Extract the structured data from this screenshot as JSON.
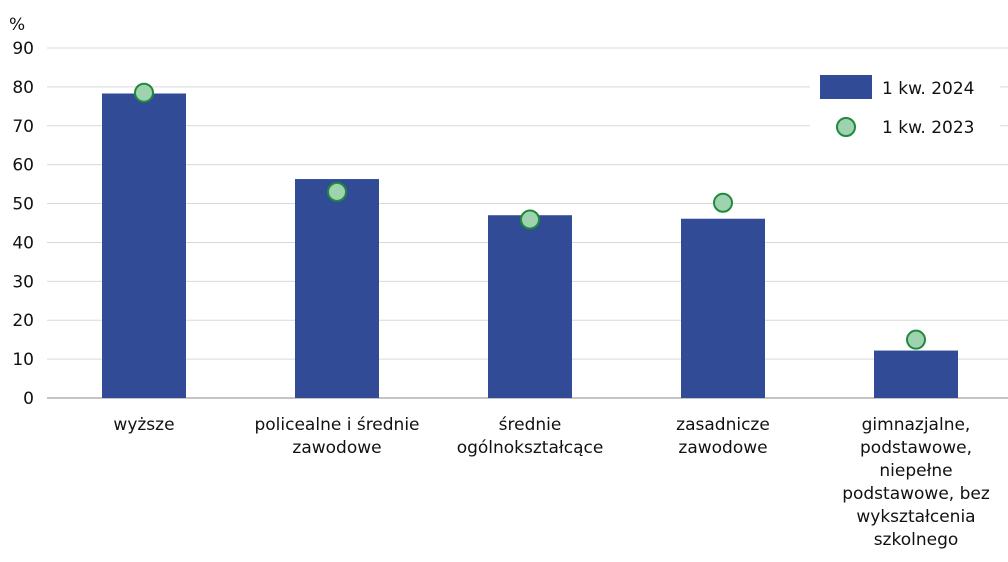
{
  "chart_data": {
    "type": "bar",
    "ylabel": "%",
    "ylim": [
      0,
      90
    ],
    "yticks": [
      0,
      10,
      20,
      30,
      40,
      50,
      60,
      70,
      80,
      90
    ],
    "grid": true,
    "legend_position": "top-right",
    "categories": [
      [
        "wyższe"
      ],
      [
        "policealne i średnie",
        "zawodowe"
      ],
      [
        "średnie",
        "ogólnokształcące"
      ],
      [
        "zasadnicze",
        "zawodowe"
      ],
      [
        "gimnazjalne,",
        "podstawowe,",
        "niepełne",
        "podstawowe, bez",
        "wykształcenia",
        "szkolnego"
      ]
    ],
    "series": [
      {
        "name": "1 kw. 2024",
        "kind": "bar",
        "color": "#324b96",
        "values": [
          78.3,
          56.3,
          47.0,
          46.1,
          12.2
        ]
      },
      {
        "name": "1 kw. 2023",
        "kind": "marker",
        "color": "#9fd3b0",
        "stroke": "#1f8a3c",
        "values": [
          78.5,
          53.0,
          45.9,
          50.2,
          15.0
        ]
      }
    ]
  }
}
